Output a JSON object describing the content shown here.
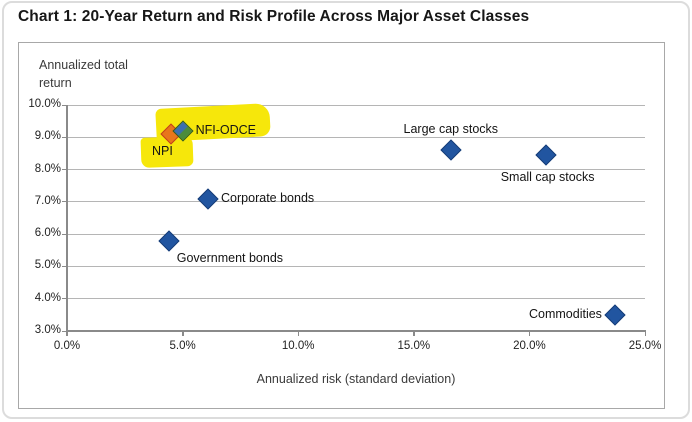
{
  "chart_data": {
    "type": "scatter",
    "title": "Chart 1: 20-Year Return and Risk Profile Across Major Asset Classes",
    "y_axis_title": "Annualized total return",
    "x_axis_title": "Annualized risk (standard deviation)",
    "xlim": [
      0,
      25
    ],
    "ylim": [
      3,
      10
    ],
    "grid": true,
    "legend": "none",
    "x_ticks": [
      {
        "label": "0.0%",
        "value": 0
      },
      {
        "label": "5.0%",
        "value": 5
      },
      {
        "label": "10.0%",
        "value": 10
      },
      {
        "label": "15.0%",
        "value": 15
      },
      {
        "label": "20.0%",
        "value": 20
      },
      {
        "label": "25.0%",
        "value": 25
      }
    ],
    "y_ticks": [
      {
        "label": "10.0%",
        "value": 10
      },
      {
        "label": "9.0%",
        "value": 9
      },
      {
        "label": "8.0%",
        "value": 8
      },
      {
        "label": "7.0%",
        "value": 7
      },
      {
        "label": "6.0%",
        "value": 6
      },
      {
        "label": "5.0%",
        "value": 5
      },
      {
        "label": "4.0%",
        "value": 4
      },
      {
        "label": "3.0%",
        "value": 3
      }
    ],
    "points": [
      {
        "label": "NPI",
        "x": 4.5,
        "y": 9.1,
        "marker": "diamond-orange",
        "label_pos": "below-left",
        "highlighted": true
      },
      {
        "label": "NFI-ODCE",
        "x": 5.0,
        "y": 9.2,
        "marker": "diamond-blue-green",
        "label_pos": "right",
        "highlighted": true
      },
      {
        "label": "Government bonds",
        "x": 4.4,
        "y": 5.8,
        "marker": "diamond-blue",
        "label_pos": "below-right",
        "highlighted": false
      },
      {
        "label": "Corporate bonds",
        "x": 6.1,
        "y": 7.1,
        "marker": "diamond-blue",
        "label_pos": "right",
        "highlighted": false
      },
      {
        "label": "Large cap stocks",
        "x": 16.6,
        "y": 8.6,
        "marker": "diamond-blue",
        "label_pos": "above",
        "highlighted": false
      },
      {
        "label": "Small cap stocks",
        "x": 20.7,
        "y": 8.45,
        "marker": "diamond-blue",
        "label_pos": "below",
        "highlighted": false
      },
      {
        "label": "Commodities",
        "x": 23.7,
        "y": 3.5,
        "marker": "diamond-blue",
        "label_pos": "left",
        "highlighted": false
      }
    ],
    "marker_colors": {
      "blue_fill": "#2155A0",
      "blue_border": "#173E78",
      "orange_fill": "#E8761B",
      "orange_border": "#C2411A",
      "green_fill": "#4C8C3C",
      "green_blue_fill": "#3B6FB0",
      "green_border": "#2E5B22"
    },
    "highlight_color": "#F6E70B"
  }
}
